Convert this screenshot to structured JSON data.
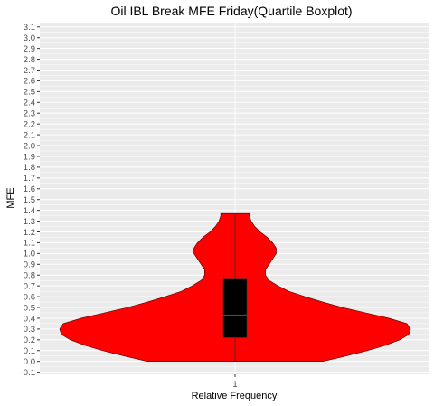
{
  "chart_data": {
    "type": "violin",
    "title": "Oil IBL Break MFE Friday(Quartile Boxplot)",
    "xlabel": "Relative Frequency",
    "ylabel": "MFE",
    "categories": [
      "1"
    ],
    "ylim": [
      -0.12,
      3.14
    ],
    "y_ticks": [
      "-0.1",
      "0.0",
      "0.1",
      "0.2",
      "0.3",
      "0.4",
      "0.5",
      "0.6",
      "0.7",
      "0.8",
      "0.9",
      "1.0",
      "1.1",
      "1.2",
      "1.3",
      "1.4",
      "1.5",
      "1.6",
      "1.7",
      "1.8",
      "1.9",
      "2.0",
      "2.1",
      "2.2",
      "2.3",
      "2.4",
      "2.5",
      "2.6",
      "2.7",
      "2.8",
      "2.9",
      "3.0",
      "3.1"
    ],
    "grid": true,
    "violin": {
      "fill": "#ff0000",
      "outline": "#4d0000",
      "min": 0.0,
      "max": 1.37,
      "density_profile": [
        [
          0.0,
          0.49
        ],
        [
          0.05,
          0.62
        ],
        [
          0.1,
          0.74
        ],
        [
          0.15,
          0.84
        ],
        [
          0.2,
          0.92
        ],
        [
          0.25,
          0.97
        ],
        [
          0.3,
          0.98
        ],
        [
          0.35,
          0.96
        ],
        [
          0.4,
          0.86
        ],
        [
          0.45,
          0.73
        ],
        [
          0.5,
          0.6
        ],
        [
          0.55,
          0.49
        ],
        [
          0.6,
          0.39
        ],
        [
          0.65,
          0.3
        ],
        [
          0.7,
          0.24
        ],
        [
          0.75,
          0.19
        ],
        [
          0.8,
          0.17
        ],
        [
          0.85,
          0.17
        ],
        [
          0.9,
          0.19
        ],
        [
          0.95,
          0.21
        ],
        [
          1.0,
          0.23
        ],
        [
          1.05,
          0.23
        ],
        [
          1.1,
          0.21
        ],
        [
          1.15,
          0.18
        ],
        [
          1.2,
          0.14
        ],
        [
          1.25,
          0.11
        ],
        [
          1.3,
          0.09
        ],
        [
          1.35,
          0.08
        ],
        [
          1.37,
          0.08
        ]
      ]
    },
    "boxplot": {
      "q1": 0.22,
      "median": 0.43,
      "q3": 0.77,
      "whisker_low": 0.0,
      "whisker_high": 1.37,
      "fill": "#000000"
    },
    "colors": {
      "panel_bg": "#ebebeb",
      "grid": "#ffffff",
      "violin_fill": "#ff0000",
      "box_fill": "#000000"
    }
  }
}
